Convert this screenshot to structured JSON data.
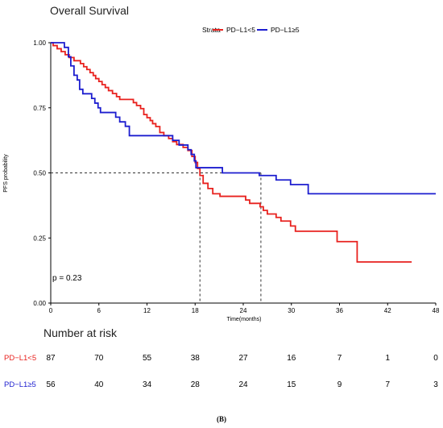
{
  "chart_data": {
    "type": "line",
    "subtype": "kaplan-meier step",
    "title": "Overall Survival",
    "xlabel": "Time(months)",
    "ylabel": "PFS probability",
    "xlim": [
      0,
      48
    ],
    "ylim": [
      0,
      1
    ],
    "x_ticks": [
      0,
      6,
      12,
      18,
      24,
      30,
      36,
      42,
      48
    ],
    "x_tick_labels": [
      "0",
      "6",
      "12",
      "18",
      "24",
      "30",
      "36",
      "42",
      "48"
    ],
    "y_ticks": [
      0,
      0.25,
      0.5,
      0.75,
      1.0
    ],
    "y_tick_labels": [
      "0.00",
      "0.25",
      "0.50",
      "0.75",
      "1.00"
    ],
    "grid": false,
    "legend": {
      "title": "Strata",
      "placement": "top"
    },
    "pvalue_text": "p = 0.23",
    "median_line": {
      "y": 0.5,
      "x_medians": [
        18.6,
        26.2
      ]
    },
    "series": [
      {
        "name": "PD−L1<5",
        "color": "#e8211e",
        "steps": [
          [
            0,
            1.0
          ],
          [
            0.3,
            0.989
          ],
          [
            0.8,
            0.977
          ],
          [
            1.3,
            0.966
          ],
          [
            1.8,
            0.954
          ],
          [
            2.3,
            0.943
          ],
          [
            2.9,
            0.931
          ],
          [
            3.7,
            0.92
          ],
          [
            4.1,
            0.908
          ],
          [
            4.5,
            0.897
          ],
          [
            4.9,
            0.885
          ],
          [
            5.3,
            0.874
          ],
          [
            5.6,
            0.862
          ],
          [
            6.0,
            0.851
          ],
          [
            6.4,
            0.839
          ],
          [
            6.8,
            0.828
          ],
          [
            7.2,
            0.816
          ],
          [
            7.7,
            0.805
          ],
          [
            8.2,
            0.793
          ],
          [
            8.6,
            0.782
          ],
          [
            10.3,
            0.77
          ],
          [
            10.7,
            0.759
          ],
          [
            11.2,
            0.747
          ],
          [
            11.6,
            0.724
          ],
          [
            12.0,
            0.712
          ],
          [
            12.4,
            0.701
          ],
          [
            12.7,
            0.689
          ],
          [
            13.1,
            0.678
          ],
          [
            13.6,
            0.655
          ],
          [
            14.1,
            0.643
          ],
          [
            14.7,
            0.632
          ],
          [
            15.2,
            0.62
          ],
          [
            15.7,
            0.609
          ],
          [
            16.5,
            0.598
          ],
          [
            17.1,
            0.586
          ],
          [
            17.6,
            0.563
          ],
          [
            18.0,
            0.54
          ],
          [
            18.3,
            0.517
          ],
          [
            18.6,
            0.49
          ],
          [
            19.0,
            0.46
          ],
          [
            19.6,
            0.44
          ],
          [
            20.2,
            0.42
          ],
          [
            21.1,
            0.41
          ],
          [
            24.3,
            0.396
          ],
          [
            24.8,
            0.383
          ],
          [
            26.1,
            0.37
          ],
          [
            26.5,
            0.356
          ],
          [
            27.0,
            0.342
          ],
          [
            28.1,
            0.329
          ],
          [
            28.7,
            0.315
          ],
          [
            29.9,
            0.296
          ],
          [
            30.5,
            0.276
          ],
          [
            35.7,
            0.236
          ],
          [
            38.2,
            0.158
          ],
          [
            45.0,
            0.158
          ]
        ]
      },
      {
        "name": "PD−L1≥5",
        "color": "#1c1dcf",
        "steps": [
          [
            0,
            1.0
          ],
          [
            1.7,
            0.982
          ],
          [
            2.2,
            0.946
          ],
          [
            2.5,
            0.911
          ],
          [
            2.9,
            0.875
          ],
          [
            3.3,
            0.857
          ],
          [
            3.6,
            0.821
          ],
          [
            4.0,
            0.804
          ],
          [
            5.1,
            0.786
          ],
          [
            5.5,
            0.768
          ],
          [
            5.9,
            0.75
          ],
          [
            6.2,
            0.732
          ],
          [
            8.1,
            0.714
          ],
          [
            8.6,
            0.696
          ],
          [
            9.3,
            0.679
          ],
          [
            9.8,
            0.643
          ],
          [
            15.2,
            0.625
          ],
          [
            16.0,
            0.607
          ],
          [
            17.1,
            0.589
          ],
          [
            17.5,
            0.571
          ],
          [
            17.9,
            0.546
          ],
          [
            18.1,
            0.52
          ],
          [
            21.4,
            0.5
          ],
          [
            26.0,
            0.49
          ],
          [
            28.1,
            0.473
          ],
          [
            29.9,
            0.455
          ],
          [
            32.1,
            0.42
          ],
          [
            48.0,
            0.42
          ]
        ]
      }
    ]
  },
  "risk_table": {
    "title": "Number at risk",
    "times": [
      0,
      6,
      12,
      18,
      24,
      30,
      36,
      42,
      48
    ],
    "rows": [
      {
        "label": "PD−L1<5",
        "color": "#e8211e",
        "values": [
          "87",
          "70",
          "55",
          "38",
          "27",
          "16",
          "7",
          "1",
          "0"
        ]
      },
      {
        "label": "PD−L1≥5",
        "color": "#1c1dcf",
        "values": [
          "56",
          "40",
          "34",
          "28",
          "24",
          "15",
          "9",
          "7",
          "3"
        ]
      }
    ]
  },
  "panel_label": "(B)"
}
